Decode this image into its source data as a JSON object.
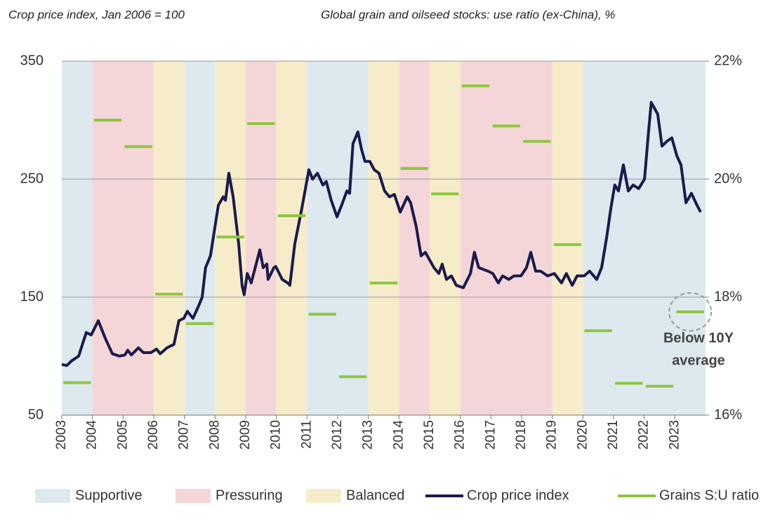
{
  "chart_data": {
    "type": "line",
    "title_left": "Crop price index, Jan 2006 = 100",
    "title_right": "Global grain and oilseed stocks: use ratio (ex-China), %",
    "xlim": [
      2003,
      2024
    ],
    "xticks": [
      2003,
      2004,
      2005,
      2006,
      2007,
      2008,
      2009,
      2010,
      2011,
      2012,
      2013,
      2014,
      2015,
      2016,
      2017,
      2018,
      2019,
      2020,
      2021,
      2022,
      2023
    ],
    "ylim": [
      50,
      350
    ],
    "yticks": [
      50,
      150,
      250,
      350
    ],
    "y2lim": [
      16,
      22
    ],
    "y2ticks": [
      {
        "value": 16,
        "label": "16%"
      },
      {
        "value": 18,
        "label": "18%"
      },
      {
        "value": 20,
        "label": "20%"
      },
      {
        "value": 22,
        "label": "22%"
      }
    ],
    "grid": true,
    "regimes": [
      {
        "name": "Supportive",
        "color": "#dde9ef",
        "spans": [
          [
            2003,
            2004
          ],
          [
            2007,
            2008
          ],
          [
            2011,
            2013
          ],
          [
            2020,
            2024
          ]
        ]
      },
      {
        "name": "Pressuring",
        "color": "#f5d6d8",
        "spans": [
          [
            2004,
            2006
          ],
          [
            2009,
            2010
          ],
          [
            2014,
            2015
          ],
          [
            2016,
            2019
          ]
        ]
      },
      {
        "name": "Balanced",
        "color": "#f6ecc9",
        "spans": [
          [
            2006,
            2007
          ],
          [
            2008,
            2009
          ],
          [
            2010,
            2011
          ],
          [
            2013,
            2014
          ],
          [
            2015,
            2016
          ],
          [
            2019,
            2020
          ]
        ]
      }
    ],
    "series": [
      {
        "name": "Crop price index",
        "color": "#1c1a4b",
        "x": [
          2003.0,
          2003.16,
          2003.32,
          2003.55,
          2003.8,
          2003.96,
          2004.19,
          2004.42,
          2004.65,
          2004.88,
          2005.06,
          2005.15,
          2005.27,
          2005.5,
          2005.66,
          2005.91,
          2006.09,
          2006.21,
          2006.43,
          2006.66,
          2006.82,
          2006.98,
          2007.1,
          2007.28,
          2007.47,
          2007.58,
          2007.69,
          2007.85,
          2007.97,
          2008.11,
          2008.27,
          2008.34,
          2008.45,
          2008.59,
          2008.77,
          2008.88,
          2008.95,
          2009.05,
          2009.18,
          2009.46,
          2009.57,
          2009.69,
          2009.73,
          2009.92,
          2009.98,
          2010.19,
          2010.37,
          2010.44,
          2010.6,
          2010.83,
          2011.06,
          2011.18,
          2011.34,
          2011.52,
          2011.63,
          2011.79,
          2011.98,
          2012.16,
          2012.3,
          2012.39,
          2012.5,
          2012.66,
          2012.78,
          2012.89,
          2013.05,
          2013.19,
          2013.35,
          2013.53,
          2013.69,
          2013.85,
          2014.04,
          2014.27,
          2014.38,
          2014.56,
          2014.72,
          2014.86,
          2015.14,
          2015.3,
          2015.41,
          2015.55,
          2015.71,
          2015.87,
          2016.1,
          2016.33,
          2016.46,
          2016.6,
          2016.9,
          2017.06,
          2017.24,
          2017.38,
          2017.58,
          2017.75,
          2017.98,
          2018.16,
          2018.3,
          2018.46,
          2018.62,
          2018.85,
          2019.07,
          2019.3,
          2019.46,
          2019.65,
          2019.81,
          2020.04,
          2020.22,
          2020.45,
          2020.61,
          2020.77,
          2020.91,
          2021.04,
          2021.16,
          2021.32,
          2021.48,
          2021.64,
          2021.82,
          2022.01,
          2022.14,
          2022.23,
          2022.44,
          2022.58,
          2022.74,
          2022.9,
          2023.06,
          2023.2,
          2023.36,
          2023.54,
          2023.72,
          2023.84
        ],
        "values": [
          93,
          92,
          96,
          100,
          120,
          118,
          130,
          115,
          102,
          100,
          101,
          105,
          101,
          107,
          103,
          103,
          106,
          102,
          107,
          110,
          130,
          132,
          138,
          132,
          143,
          150,
          175,
          185,
          205,
          228,
          235,
          232,
          255,
          235,
          195,
          160,
          152,
          170,
          162,
          190,
          175,
          178,
          165,
          175,
          176,
          165,
          162,
          160,
          195,
          225,
          258,
          250,
          255,
          245,
          248,
          232,
          218,
          230,
          240,
          238,
          280,
          290,
          275,
          265,
          265,
          258,
          255,
          240,
          235,
          237,
          222,
          235,
          230,
          210,
          185,
          188,
          175,
          170,
          178,
          165,
          168,
          160,
          158,
          170,
          188,
          175,
          172,
          170,
          162,
          168,
          165,
          168,
          168,
          175,
          188,
          172,
          172,
          168,
          170,
          162,
          170,
          160,
          168,
          168,
          172,
          165,
          175,
          200,
          225,
          245,
          240,
          262,
          240,
          245,
          242,
          250,
          290,
          315,
          305,
          278,
          282,
          285,
          270,
          262,
          230,
          238,
          228,
          222
        ]
      },
      {
        "name": "Grains S:U ratio",
        "color": "#8dc63f",
        "axis": "y2",
        "x": [
          2003,
          2004,
          2005,
          2006,
          2007,
          2008,
          2009,
          2010,
          2011,
          2012,
          2013,
          2014,
          2015,
          2016,
          2017,
          2018,
          2019,
          2020,
          2021,
          2022,
          2023
        ],
        "values": [
          16.55,
          21.0,
          20.55,
          18.05,
          17.55,
          19.02,
          20.94,
          19.38,
          17.71,
          16.65,
          18.24,
          20.18,
          19.75,
          21.58,
          20.9,
          20.64,
          18.89,
          17.43,
          16.54,
          16.49,
          17.75
        ]
      }
    ],
    "annotation_lines": [
      "Below 10Y",
      "average"
    ]
  }
}
